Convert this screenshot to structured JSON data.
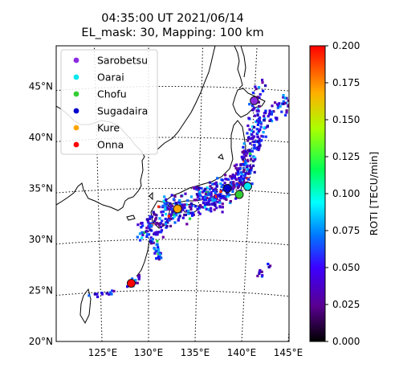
{
  "title": {
    "line1": "04:35:00 UT 2021/06/14",
    "line2": "EL_mask: 30, Mapping: 100 km"
  },
  "chart_data": {
    "type": "scatter",
    "map_extent": {
      "lon": [
        120,
        145
      ],
      "lat": [
        20,
        49
      ]
    },
    "x_ticks": [
      "125°E",
      "130°E",
      "135°E",
      "140°E",
      "145°E"
    ],
    "y_ticks": [
      "20°N",
      "25°N",
      "30°N",
      "35°N",
      "40°N",
      "45°N"
    ],
    "grid": true,
    "grid_style": "dotted",
    "legend_position": "top-left",
    "stations": [
      {
        "name": "Sarobetsu",
        "color": "#8a2be2",
        "lon": 140.0,
        "lat": 43.6
      },
      {
        "name": "Oarai",
        "color": "#00e8f0",
        "lon": 139.8,
        "lat": 35.2
      },
      {
        "name": "Chofu",
        "color": "#32cd32",
        "lon": 139.0,
        "lat": 34.4
      },
      {
        "name": "Sugadaira",
        "color": "#0000cd",
        "lon": 137.8,
        "lat": 35.0
      },
      {
        "name": "Kure",
        "color": "#ffa500",
        "lon": 132.9,
        "lat": 33.0
      },
      {
        "name": "Onna",
        "color": "#ff0000",
        "lon": 128.2,
        "lat": 25.7
      }
    ],
    "colorbar": {
      "label": "ROTI [TECU/min]",
      "range": [
        0.0,
        0.2
      ],
      "ticks": [
        "0.000",
        "0.025",
        "0.050",
        "0.075",
        "0.100",
        "0.125",
        "0.150",
        "0.175",
        "0.200"
      ]
    }
  }
}
